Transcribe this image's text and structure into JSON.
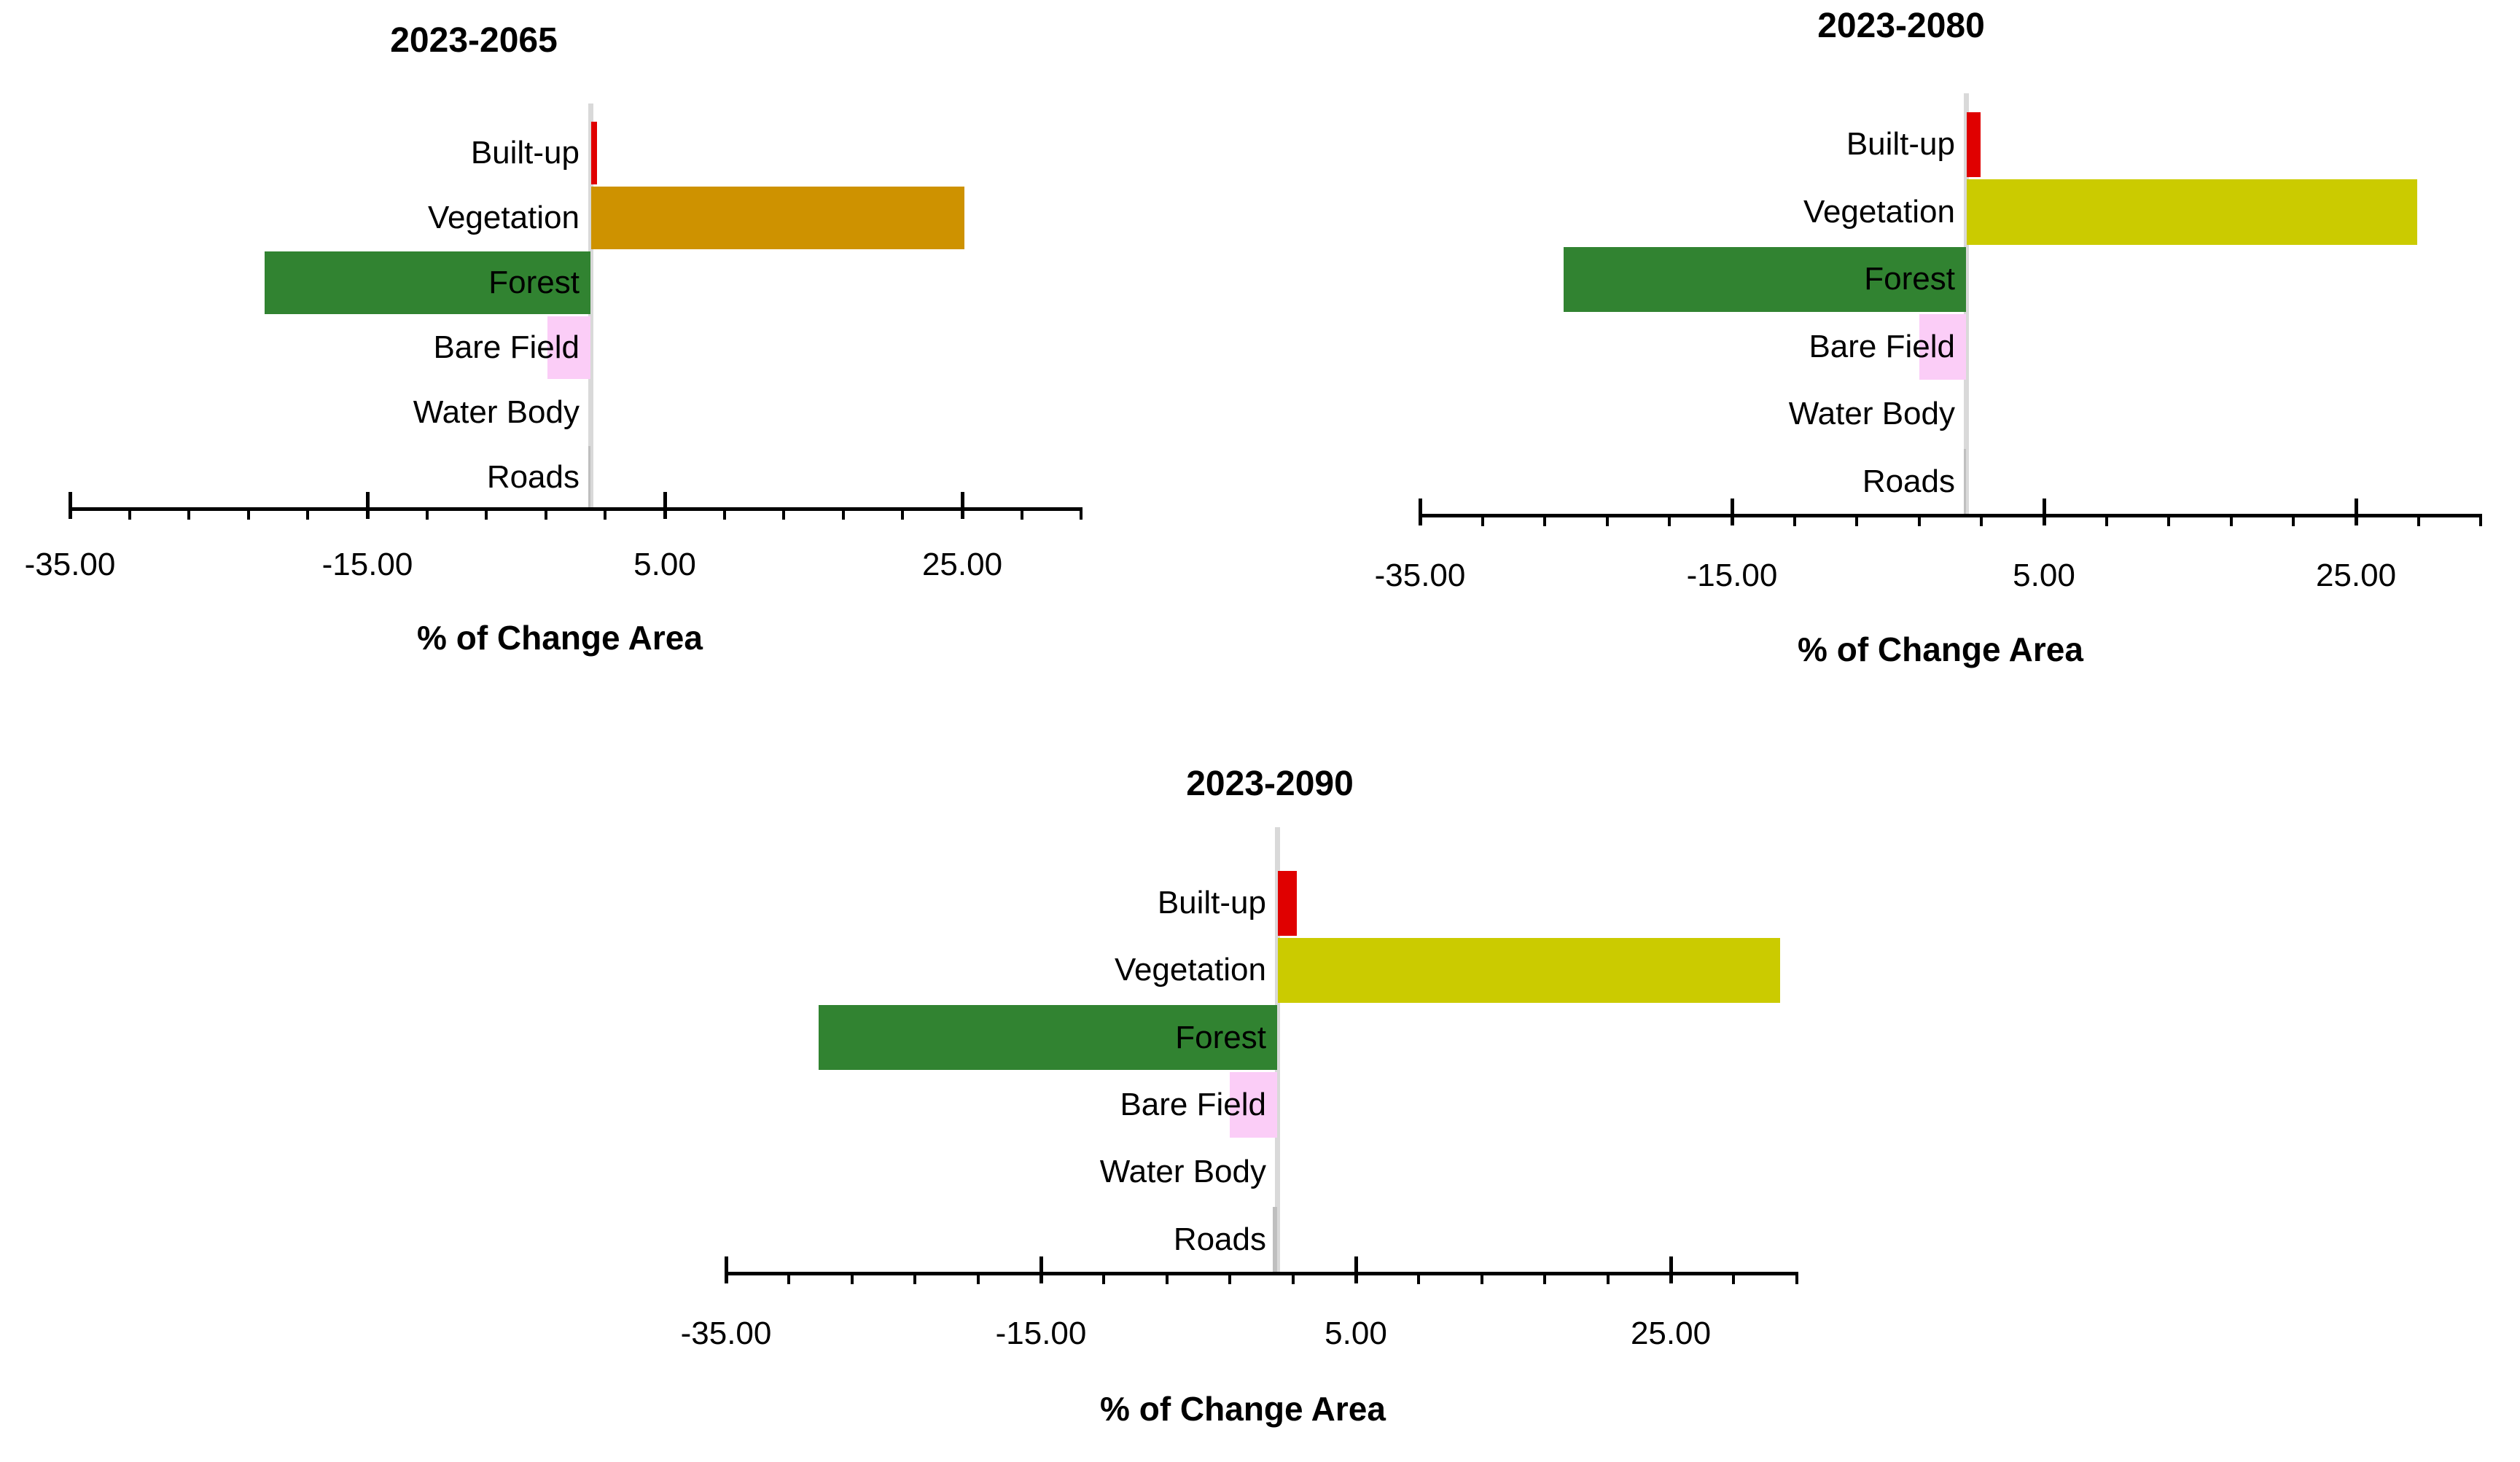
{
  "figure": {
    "background": "#FFFFFF",
    "text_color": "#000000",
    "axis_color": "#000000",
    "zero_gridline_color": "#D9D9D9"
  },
  "chart_data": [
    {
      "type": "bar",
      "orientation": "horizontal",
      "title": "2023-2065",
      "xlabel": "% of Change Area",
      "categories": [
        "Built-up",
        "Vegetation",
        "Forest",
        "Bare Field",
        "Water Body",
        "Roads"
      ],
      "values": [
        0.4,
        25.1,
        -21.9,
        -2.9,
        0.0,
        -0.15
      ],
      "bar_colors": [
        "#E00000",
        "#CE9200",
        "#318331",
        "#FBCDF7",
        "#BFBFBF",
        "#BFBFBF"
      ],
      "xlim": [
        -35,
        33
      ],
      "xticks": [
        -35,
        -15,
        5,
        25
      ],
      "xtick_labels": [
        "-35.00",
        "-15.00",
        "5.00",
        "25.00"
      ],
      "minor_tick_step": 4,
      "grid": false,
      "legend": null
    },
    {
      "type": "bar",
      "orientation": "horizontal",
      "title": "2023-2080",
      "xlabel": "% of Change Area",
      "categories": [
        "Built-up",
        "Vegetation",
        "Forest",
        "Bare Field",
        "Water Body",
        "Roads"
      ],
      "values": [
        0.9,
        28.9,
        -25.8,
        -3.0,
        0.0,
        -0.15
      ],
      "bar_colors": [
        "#E00000",
        "#CBCB00",
        "#318331",
        "#FBCDF7",
        "#BFBFBF",
        "#BFBFBF"
      ],
      "xlim": [
        -35,
        33
      ],
      "xticks": [
        -35,
        -15,
        5,
        25
      ],
      "xtick_labels": [
        "-35.00",
        "-15.00",
        "5.00",
        "25.00"
      ],
      "minor_tick_step": 4,
      "grid": false,
      "legend": null
    },
    {
      "type": "bar",
      "orientation": "horizontal",
      "title": "2023-2090",
      "xlabel": "% of Change Area",
      "categories": [
        "Built-up",
        "Vegetation",
        "Forest",
        "Bare Field",
        "Water Body",
        "Roads"
      ],
      "values": [
        1.2,
        31.9,
        -29.1,
        -3.0,
        0.0,
        -0.3
      ],
      "bar_colors": [
        "#E00000",
        "#CBCB00",
        "#318331",
        "#FBCDF7",
        "#BFBFBF",
        "#BFBFBF"
      ],
      "xlim": [
        -35,
        33
      ],
      "xticks": [
        -35,
        -15,
        5,
        25
      ],
      "xtick_labels": [
        "-35.00",
        "-15.00",
        "5.00",
        "25.00"
      ],
      "minor_tick_step": 4,
      "grid": false,
      "legend": null
    }
  ]
}
